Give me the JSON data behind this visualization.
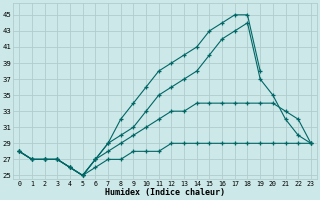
{
  "xlabel": "Humidex (Indice chaleur)",
  "bg_color": "#cce8e8",
  "grid_color": "#b0cccc",
  "line_color": "#006666",
  "xlim": [
    -0.5,
    23.5
  ],
  "ylim": [
    24.5,
    46.5
  ],
  "xticks": [
    0,
    1,
    2,
    3,
    4,
    5,
    6,
    7,
    8,
    9,
    10,
    11,
    12,
    13,
    14,
    15,
    16,
    17,
    18,
    19,
    20,
    21,
    22,
    23
  ],
  "yticks": [
    25,
    27,
    29,
    31,
    33,
    35,
    37,
    39,
    41,
    43,
    45
  ],
  "lines": [
    {
      "x": [
        0,
        1,
        2,
        3,
        4,
        5,
        6,
        7,
        8,
        9,
        10,
        11,
        12,
        13,
        14,
        15,
        16,
        17,
        18,
        19,
        20,
        21,
        22,
        23
      ],
      "y": [
        28,
        27,
        27,
        27,
        26,
        25,
        27,
        29,
        32,
        34,
        36,
        38,
        39,
        40,
        41,
        43,
        44,
        45,
        45,
        38,
        null,
        null,
        null,
        null
      ]
    },
    {
      "x": [
        0,
        1,
        2,
        3,
        4,
        5,
        6,
        7,
        8,
        9,
        10,
        11,
        12,
        13,
        14,
        15,
        16,
        17,
        18,
        19,
        20,
        21,
        22,
        23
      ],
      "y": [
        28,
        27,
        27,
        27,
        26,
        25,
        27,
        29,
        30,
        31,
        33,
        35,
        36,
        37,
        38,
        40,
        42,
        43,
        44,
        37,
        35,
        32,
        30,
        29
      ]
    },
    {
      "x": [
        0,
        1,
        2,
        3,
        4,
        5,
        6,
        7,
        8,
        9,
        10,
        11,
        12,
        13,
        14,
        15,
        16,
        17,
        18,
        19,
        20,
        21,
        22,
        23
      ],
      "y": [
        28,
        27,
        27,
        27,
        26,
        25,
        27,
        28,
        29,
        30,
        31,
        32,
        33,
        33,
        34,
        34,
        34,
        34,
        34,
        34,
        34,
        33,
        32,
        29
      ]
    },
    {
      "x": [
        0,
        1,
        2,
        3,
        4,
        5,
        6,
        7,
        8,
        9,
        10,
        11,
        12,
        13,
        14,
        15,
        16,
        17,
        18,
        19,
        20,
        21,
        22,
        23
      ],
      "y": [
        28,
        27,
        27,
        27,
        26,
        25,
        26,
        27,
        27,
        28,
        28,
        28,
        29,
        29,
        29,
        29,
        29,
        29,
        29,
        29,
        29,
        29,
        29,
        29
      ]
    }
  ]
}
